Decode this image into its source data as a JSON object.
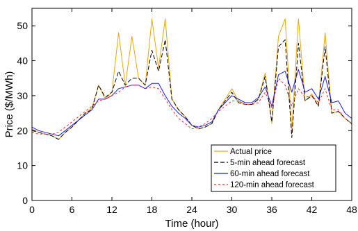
{
  "chart_data": {
    "type": "line",
    "xlabel": "Time (hour)",
    "ylabel": "Price ($/MWh)",
    "xlim": [
      0,
      48
    ],
    "ylim": [
      0,
      55
    ],
    "xticks": [
      0,
      6,
      12,
      18,
      24,
      30,
      36,
      42,
      48
    ],
    "yticks": [
      0,
      10,
      20,
      30,
      40,
      50
    ],
    "grid": false,
    "legend_position": "bottom-right",
    "x": [
      0,
      1,
      2,
      3,
      4,
      5,
      6,
      7,
      8,
      9,
      10,
      11,
      12,
      13,
      14,
      15,
      16,
      17,
      18,
      19,
      20,
      21,
      22,
      23,
      24,
      25,
      26,
      27,
      28,
      29,
      30,
      31,
      32,
      33,
      34,
      35,
      36,
      37,
      38,
      39,
      40,
      41,
      42,
      43,
      44,
      45,
      46,
      47,
      48
    ],
    "series": [
      {
        "name": "Actual price",
        "color": "#f0a500",
        "dash": "solid",
        "values": [
          20.5,
          19.5,
          19,
          18.5,
          17.5,
          19.5,
          21,
          23,
          25,
          26.5,
          33,
          29,
          31,
          48,
          33,
          47,
          35,
          33,
          52,
          38,
          52,
          29,
          26,
          24,
          21.5,
          20.5,
          21,
          22,
          26,
          29,
          32,
          28.5,
          27.5,
          27.5,
          29,
          36.5,
          22,
          47,
          52,
          20,
          52,
          28.5,
          30.5,
          27,
          48,
          25,
          25.5,
          23.5,
          22
        ]
      },
      {
        "name": "5-min ahead forecast",
        "color": "#000000",
        "dash": "6,3",
        "values": [
          20,
          19.5,
          19,
          18.5,
          17.5,
          19.5,
          21,
          23,
          25,
          26,
          33,
          29.5,
          31,
          37,
          33,
          35,
          35,
          33,
          43,
          37,
          46,
          29,
          26,
          24,
          21.5,
          20.5,
          21,
          22,
          26,
          28.5,
          31,
          28,
          27.5,
          27.5,
          29,
          35.5,
          22.5,
          44,
          46,
          18,
          45,
          28.5,
          30,
          27,
          44,
          25,
          25.5,
          23.5,
          22
        ]
      },
      {
        "name": "60-min ahead forecast",
        "color": "#1a1aff",
        "dash": "solid",
        "values": [
          21,
          20,
          19.5,
          19,
          18.5,
          20,
          21.5,
          23,
          24.5,
          26,
          29,
          29,
          30,
          32,
          32.5,
          33,
          33,
          32,
          33.5,
          33.5,
          30,
          27,
          25,
          23.5,
          21.5,
          21,
          21.5,
          22.5,
          26,
          28,
          30,
          29,
          28,
          28,
          29.5,
          32.5,
          27,
          36,
          37,
          31,
          37.5,
          31,
          32,
          29,
          35.5,
          28,
          28.5,
          25,
          23.5
        ]
      },
      {
        "name": "120-min ahead forecast",
        "color": "#ff2020",
        "dash": "3,3",
        "values": [
          19.5,
          19,
          19,
          19,
          19.5,
          21,
          22.5,
          24,
          25.5,
          27,
          28.5,
          29,
          30,
          31,
          32.5,
          33,
          33,
          32,
          32.5,
          32,
          29,
          26,
          23.5,
          22,
          20.5,
          21,
          22,
          23.5,
          25.5,
          27,
          28.5,
          28.5,
          27.5,
          27.5,
          28,
          31,
          26.5,
          35,
          33,
          27,
          32,
          29.5,
          30,
          28,
          32,
          26,
          26,
          23.5,
          22
        ]
      }
    ]
  }
}
